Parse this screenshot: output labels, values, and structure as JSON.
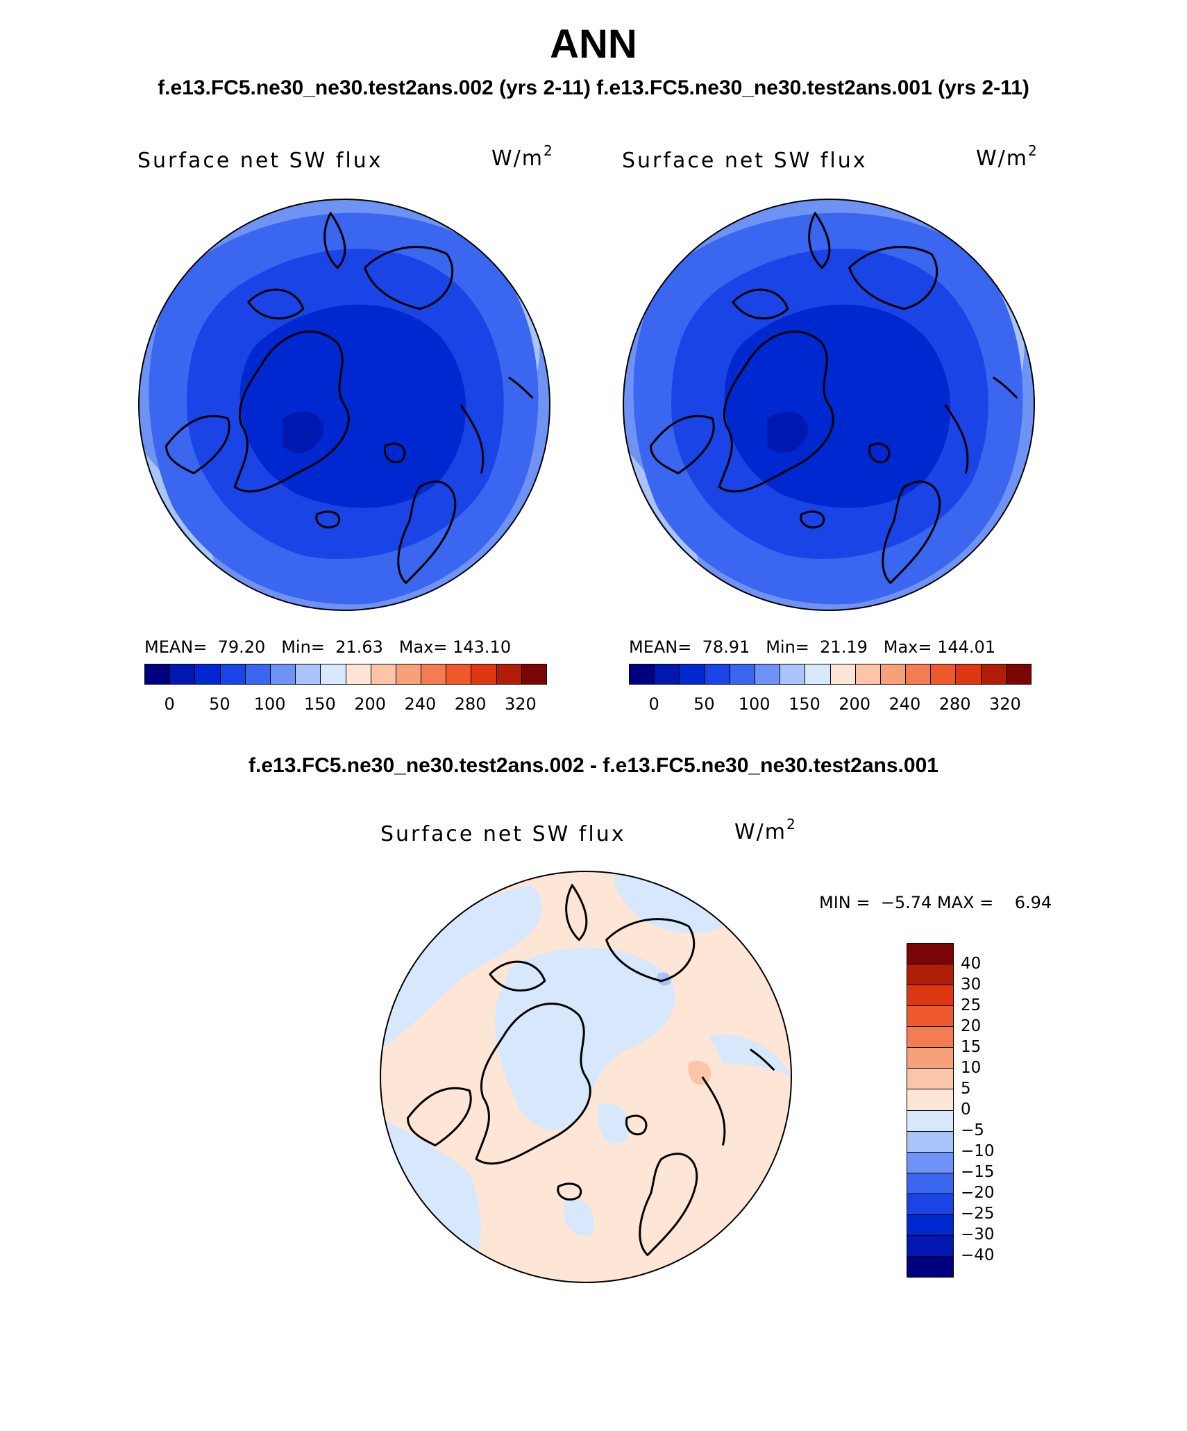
{
  "page_title": "ANN",
  "top_subtitle": "f.e13.FC5.ne30_ne30.test2ans.002 (yrs 2-11) f.e13.FC5.ne30_ne30.test2ans.001 (yrs 2-11)",
  "diff_subtitle": "f.e13.FC5.ne30_ne30.test2ans.002 - f.e13.FC5.ne30_ne30.test2ans.001",
  "panels": [
    {
      "title": "Surface net SW flux",
      "units_base": "W/m",
      "units_exp": "2",
      "stats": "MEAN=  79.20   Min=  21.63   Max= 143.10"
    },
    {
      "title": "Surface net SW flux",
      "units_base": "W/m",
      "units_exp": "2",
      "stats": "MEAN=  78.91   Min=  21.19   Max= 144.01"
    },
    {
      "title": "Surface net SW flux",
      "units_base": "W/m",
      "units_exp": "2",
      "stats": "MIN =  −5.74 MAX =    6.94"
    }
  ],
  "colorbar_abs": {
    "colors": [
      "#000080",
      "#0018b0",
      "#0028d0",
      "#1a44e6",
      "#3a66f0",
      "#6f93f4",
      "#a9c4f8",
      "#d7e8fd",
      "#fde6d6",
      "#fcc4a8",
      "#f7a07c",
      "#f47c52",
      "#ee5a2c",
      "#df3712",
      "#b01e08",
      "#7b0505"
    ],
    "tick_labels": [
      "0",
      "50",
      "100",
      "150",
      "200",
      "240",
      "280",
      "320"
    ]
  },
  "colorbar_diff": {
    "colors": [
      "#7b0505",
      "#b01e08",
      "#df3712",
      "#ee5a2c",
      "#f47c52",
      "#f7a07c",
      "#fcc4a8",
      "#fde6d6",
      "#d7e8fd",
      "#a9c4f8",
      "#6f93f4",
      "#3a66f0",
      "#1a44e6",
      "#0028d0",
      "#0018b0",
      "#000080"
    ],
    "tick_labels": [
      "40",
      "30",
      "25",
      "20",
      "15",
      "10",
      "5",
      "0",
      "−5",
      "−10",
      "−15",
      "−20",
      "−25",
      "−30",
      "−40"
    ]
  },
  "map_colors": {
    "mid": "#3a66f0",
    "light": "#6f93f4",
    "pale": "#a9c4f8",
    "dark": "#1a44e6",
    "darker": "#0028d0",
    "darkest": "#0018b0",
    "diff_pos": "#fde6d6",
    "diff_neg": "#d7e8fd",
    "diff_pos2": "#fcc4a8",
    "diff_neg2": "#a9c4f8",
    "outline": "#000000"
  }
}
